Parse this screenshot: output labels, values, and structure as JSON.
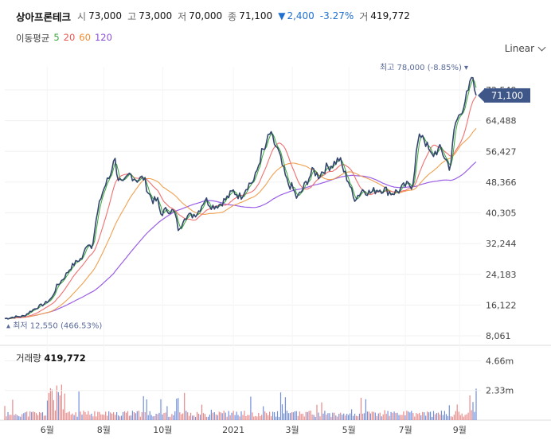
{
  "header": {
    "name": "상아프론테크",
    "open_label": "시",
    "open": "73,000",
    "high_label": "고",
    "high": "73,000",
    "low_label": "저",
    "low": "70,000",
    "close_label": "종",
    "close": "71,100",
    "change_arrow": "▼",
    "change": "2,400",
    "change_pct": "-3.27%",
    "volume_label": "거",
    "volume": "419,772"
  },
  "ma_legend": {
    "label": "이동평균",
    "p5": "5",
    "p20": "20",
    "p60": "60",
    "p120": "120"
  },
  "scale_mode": "Linear",
  "colors": {
    "price": "#34466e",
    "ma5": "#3aa63a",
    "ma20": "#f07070",
    "ma60": "#f0a050",
    "ma120": "#9a5ee6",
    "down": "#1f6fd1",
    "vol_up": "#e57373",
    "vol_down": "#5b7bd6",
    "price_tag": "#3f5688"
  },
  "chart_data": {
    "type": "line",
    "title": "상아프론테크",
    "x_ticks": [
      "6월",
      "8월",
      "10월",
      "2021",
      "3월",
      "5월",
      "7월",
      "9월"
    ],
    "x_tick_pos": [
      0.09,
      0.21,
      0.335,
      0.485,
      0.61,
      0.73,
      0.85,
      0.965
    ],
    "y_ticks": [
      "72,549",
      "64,488",
      "56,427",
      "48,366",
      "40,305",
      "32,244",
      "24,183",
      "16,122",
      "8,061"
    ],
    "ylim": [
      8061,
      72549
    ],
    "current_price": 71100,
    "current_price_label": "71,100",
    "high_annotation": "최고 78,000 (-8.85%)",
    "low_annotation": "최저 12,550 (466.53%)",
    "price_keypoints": [
      [
        0.0,
        12550
      ],
      [
        0.02,
        13000
      ],
      [
        0.04,
        13200
      ],
      [
        0.055,
        14500
      ],
      [
        0.07,
        15600
      ],
      [
        0.085,
        16500
      ],
      [
        0.1,
        18000
      ],
      [
        0.11,
        21000
      ],
      [
        0.125,
        23200
      ],
      [
        0.14,
        26000
      ],
      [
        0.155,
        27800
      ],
      [
        0.165,
        28500
      ],
      [
        0.175,
        32500
      ],
      [
        0.185,
        31500
      ],
      [
        0.195,
        39000
      ],
      [
        0.205,
        45000
      ],
      [
        0.215,
        48000
      ],
      [
        0.225,
        50500
      ],
      [
        0.232,
        55500
      ],
      [
        0.24,
        49500
      ],
      [
        0.25,
        47500
      ],
      [
        0.265,
        50500
      ],
      [
        0.28,
        49000
      ],
      [
        0.295,
        49500
      ],
      [
        0.305,
        45500
      ],
      [
        0.315,
        43500
      ],
      [
        0.325,
        43500
      ],
      [
        0.33,
        40000
      ],
      [
        0.345,
        41200
      ],
      [
        0.36,
        40500
      ],
      [
        0.37,
        35000
      ],
      [
        0.38,
        39500
      ],
      [
        0.395,
        39500
      ],
      [
        0.41,
        40500
      ],
      [
        0.425,
        44000
      ],
      [
        0.44,
        42000
      ],
      [
        0.455,
        42500
      ],
      [
        0.47,
        44000
      ],
      [
        0.485,
        46000
      ],
      [
        0.5,
        44500
      ],
      [
        0.515,
        47500
      ],
      [
        0.53,
        49000
      ],
      [
        0.545,
        56000
      ],
      [
        0.555,
        57500
      ],
      [
        0.56,
        61500
      ],
      [
        0.57,
        59000
      ],
      [
        0.58,
        56500
      ],
      [
        0.59,
        52000
      ],
      [
        0.6,
        48000
      ],
      [
        0.61,
        47000
      ],
      [
        0.62,
        44000
      ],
      [
        0.63,
        46000
      ],
      [
        0.645,
        49500
      ],
      [
        0.655,
        51500
      ],
      [
        0.665,
        50000
      ],
      [
        0.68,
        52000
      ],
      [
        0.695,
        53000
      ],
      [
        0.71,
        54500
      ],
      [
        0.72,
        51000
      ],
      [
        0.73,
        48500
      ],
      [
        0.74,
        44000
      ],
      [
        0.75,
        45000
      ],
      [
        0.76,
        46500
      ],
      [
        0.775,
        45500
      ],
      [
        0.79,
        46500
      ],
      [
        0.805,
        46500
      ],
      [
        0.82,
        45500
      ],
      [
        0.835,
        46000
      ],
      [
        0.85,
        47500
      ],
      [
        0.865,
        47500
      ],
      [
        0.875,
        58000
      ],
      [
        0.885,
        61500
      ],
      [
        0.895,
        58000
      ],
      [
        0.905,
        55000
      ],
      [
        0.915,
        56500
      ],
      [
        0.925,
        57000
      ],
      [
        0.935,
        54500
      ],
      [
        0.945,
        52000
      ],
      [
        0.955,
        63500
      ],
      [
        0.965,
        66000
      ],
      [
        0.975,
        69500
      ],
      [
        0.985,
        72000
      ],
      [
        0.99,
        76000
      ],
      [
        1.0,
        71100
      ]
    ],
    "volume_ylim": [
      0,
      5500000
    ],
    "volume_ticks": [
      "4.66m",
      "2.33m"
    ],
    "volume_tick_values": [
      4660000,
      2330000
    ],
    "volume_label": "거래량",
    "volume_value": "419,772"
  }
}
